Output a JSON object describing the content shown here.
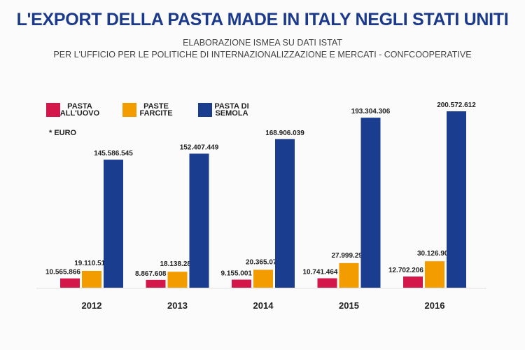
{
  "title": "L'EXPORT DELLA PASTA MADE IN ITALY NEGLI STATI UNITI",
  "subtitle_1": "ELABORAZIONE ISMEA SU DATI ISTAT",
  "subtitle_2": "PER L'UFFICIO PER LE POLITICHE DI INTERNAZIONALIZZAZIONE E MERCATI - CONFCOOPERATIVE",
  "chart_data": {
    "type": "bar",
    "unit_note": "* EURO",
    "categories": [
      "2012",
      "2013",
      "2014",
      "2015",
      "2016"
    ],
    "series": [
      {
        "name": [
          "PASTA",
          "ALL'UOVO"
        ],
        "color": "#d4174b",
        "values": [
          10565866,
          8867608,
          9155001,
          10741464,
          12702206
        ],
        "labels": [
          "10.565.866",
          "8.867.608",
          "9.155.001",
          "10.741.464",
          "12.702.206"
        ]
      },
      {
        "name": [
          "PASTE",
          "FARCITE"
        ],
        "color": "#f39c00",
        "values": [
          19110514,
          18138285,
          20365073,
          27999291,
          30126905
        ],
        "labels": [
          "19.110.514",
          "18.138.285",
          "20.365.073",
          "27.999.291",
          "30.126.905"
        ]
      },
      {
        "name": [
          "PASTA DI",
          "SEMOLA"
        ],
        "color": "#1a3d8f",
        "values": [
          145586545,
          152407449,
          168906039,
          193304306,
          200572612
        ],
        "labels": [
          "145.586.545",
          "152.407.449",
          "168.906.039",
          "193.304.306",
          "200.572.612"
        ]
      }
    ],
    "ylim": [
      0,
      200572612
    ],
    "grid": false,
    "legend": "top-left"
  }
}
